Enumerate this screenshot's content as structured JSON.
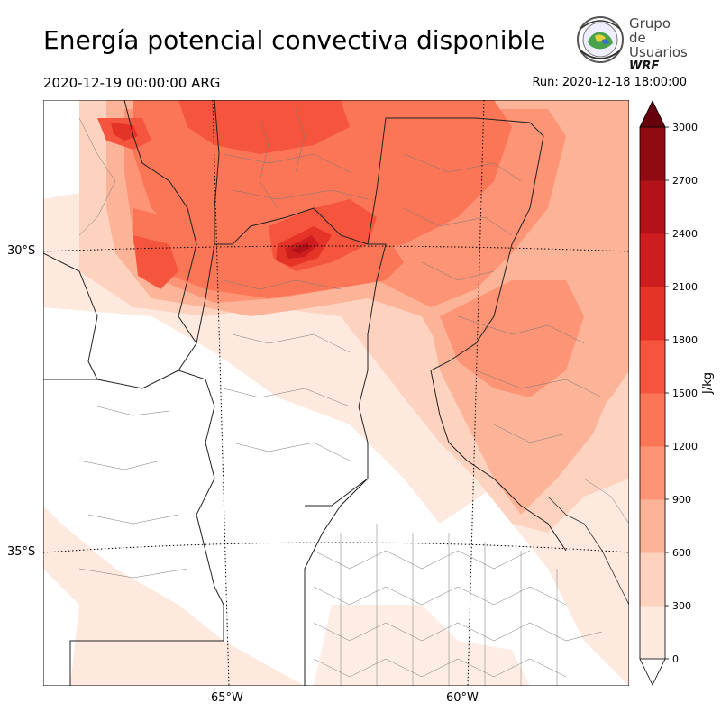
{
  "title": "Energía potencial convectiva disponible",
  "valid_time": "2020-12-19 00:00:00 ARG",
  "run_time": "Run: 2020-12-18 18:00:00",
  "logo": {
    "line1": "Grupo de",
    "line2": "Usuarios",
    "line3": "WRF"
  },
  "map": {
    "lat_labels": [
      "30°S",
      "35°S"
    ],
    "lon_labels": [
      "65°W",
      "60°W"
    ]
  },
  "colorbar": {
    "label": "J/kg",
    "ticks": [
      "0",
      "300",
      "600",
      "900",
      "1200",
      "1500",
      "1800",
      "2100",
      "2400",
      "2700",
      "3000"
    ],
    "levels": [
      0,
      300,
      600,
      900,
      1200,
      1500,
      1800,
      2100,
      2400,
      2700,
      3000
    ],
    "colors": [
      "#fee9df",
      "#fdd2bf",
      "#fcb499",
      "#fc9475",
      "#fb7656",
      "#f5553d",
      "#e63328",
      "#cd1d1e",
      "#b21218",
      "#900a12"
    ],
    "extend_color": "#67000d"
  }
}
